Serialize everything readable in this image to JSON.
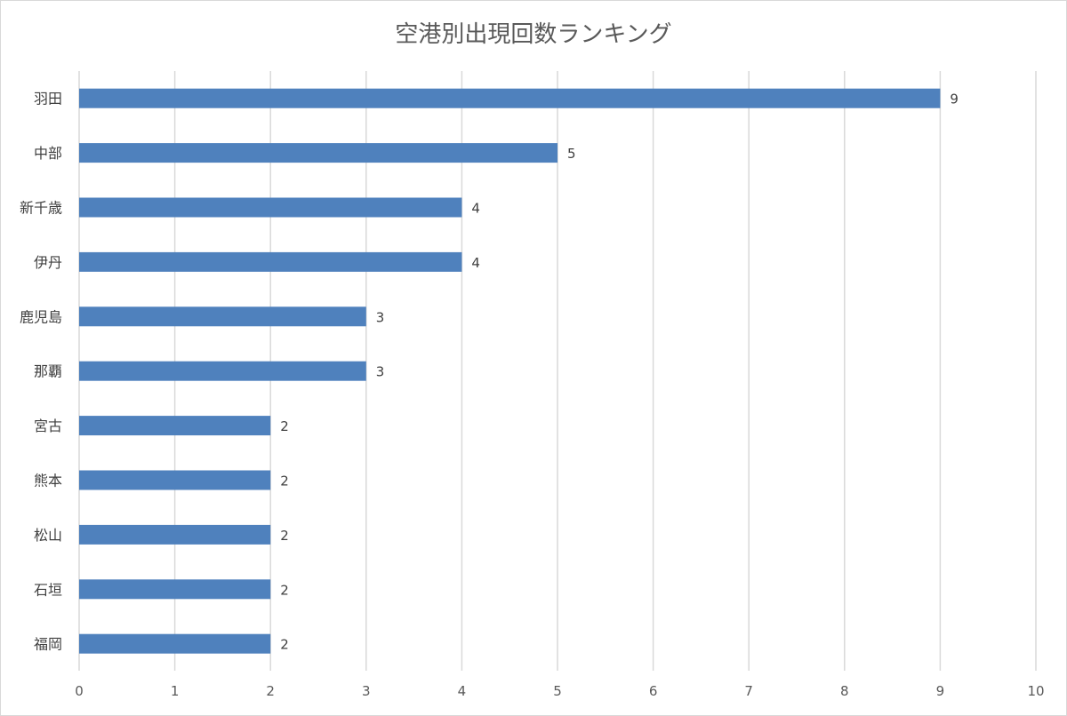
{
  "chart_data": {
    "type": "bar",
    "orientation": "horizontal",
    "title": "空港別出現回数ランキング",
    "categories": [
      "羽田",
      "中部",
      "新千歳",
      "伊丹",
      "鹿児島",
      "那覇",
      "宮古",
      "熊本",
      "松山",
      "石垣",
      "福岡"
    ],
    "values": [
      9,
      5,
      4,
      4,
      3,
      3,
      2,
      2,
      2,
      2,
      2
    ],
    "xlim": [
      0,
      10
    ],
    "xticks": [
      0,
      1,
      2,
      3,
      4,
      5,
      6,
      7,
      8,
      9,
      10
    ],
    "grid": "vertical",
    "data_labels": true,
    "bar_color": "#4f81bd",
    "grid_color": "#d9d9d9"
  }
}
